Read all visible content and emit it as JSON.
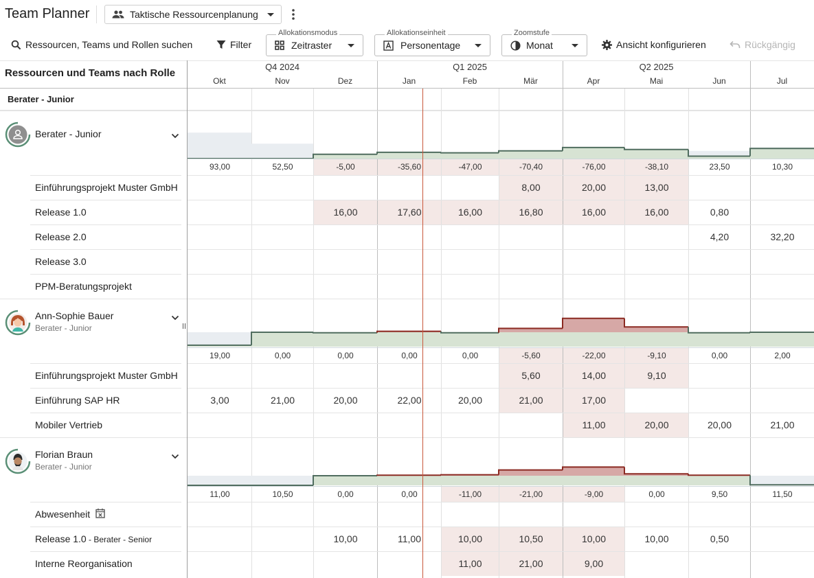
{
  "header": {
    "app_title": "Team Planner",
    "view_selector": "Taktische Ressourcenplanung"
  },
  "toolbar": {
    "search": "Ressourcen, Teams und Rollen suchen",
    "filter": "Filter",
    "alloc_mode_caption": "Allokationsmodus",
    "alloc_mode_value": "Zeitraster",
    "alloc_unit_caption": "Allokationseinheit",
    "alloc_unit_value": "Personentage",
    "zoom_caption": "Zoomstufe",
    "zoom_value": "Monat",
    "configure": "Ansicht konfigurieren",
    "undo": "Rückgängig"
  },
  "left_panel_title": "Ressourcen und Teams nach Rolle",
  "timeline": {
    "quarters": [
      "Q4 2024",
      "Q1 2025",
      "Q2 2025"
    ],
    "months": [
      "Okt",
      "Nov",
      "Dez",
      "Jan",
      "Feb",
      "Mär",
      "Apr",
      "Mai",
      "Jun",
      "Jul"
    ]
  },
  "group": {
    "label": "Berater - Junior"
  },
  "resources": [
    {
      "name": "Berater - Junior",
      "subtitle": "",
      "capacity": [
        0.54,
        0.31,
        0.09,
        0.13,
        0.12,
        0.16,
        0.23,
        0.19,
        0.16,
        0.23
      ],
      "demand": [
        0,
        0,
        0.09,
        0.13,
        0.12,
        0.16,
        0.23,
        0.19,
        0.05,
        0.21
      ],
      "sums": [
        "93,00",
        "52,50",
        "-5,00",
        "-35,60",
        "-47,00",
        "-70,40",
        "-76,00",
        "-38,10",
        "23,50",
        "10,30"
      ],
      "rows": [
        {
          "label": "Einführungsprojekt Muster GmbH",
          "cells": [
            "",
            "",
            "",
            "",
            "",
            "8,00",
            "20,00",
            "13,00",
            "",
            ""
          ]
        },
        {
          "label": "Release 1.0",
          "cells": [
            "",
            "",
            "16,00",
            "17,60",
            "16,00",
            "16,80",
            "16,00",
            "16,00",
            "0,80",
            ""
          ]
        },
        {
          "label": "Release 2.0",
          "cells": [
            "",
            "",
            "",
            "",
            "",
            "",
            "",
            "",
            "4,20",
            "32,20"
          ]
        },
        {
          "label": "Release 3.0",
          "cells": [
            "",
            "",
            "",
            "",
            "",
            "",
            "",
            "",
            "",
            ""
          ]
        },
        {
          "label": "PPM-Beratungsprojekt",
          "cells": [
            "",
            "",
            "",
            "",
            "",
            "",
            "",
            "",
            "",
            ""
          ]
        }
      ]
    },
    {
      "name": "Ann-Sophie Bauer",
      "subtitle": "Berater - Junior",
      "capacity": [
        0.3,
        0.3,
        0.3,
        0.3,
        0.3,
        0.3,
        0.3,
        0.3,
        0.3,
        0.3
      ],
      "demand": [
        0.03,
        0.3,
        0.29,
        0.32,
        0.29,
        0.38,
        0.59,
        0.41,
        0.29,
        0.3
      ],
      "sums": [
        "19,00",
        "0,00",
        "0,00",
        "0,00",
        "0,00",
        "-5,60",
        "-22,00",
        "-9,10",
        "0,00",
        "2,00"
      ],
      "rows": [
        {
          "label": "Einführungsprojekt Muster GmbH",
          "cells": [
            "",
            "",
            "",
            "",
            "",
            "5,60",
            "14,00",
            "9,10",
            "",
            ""
          ]
        },
        {
          "label": "Einführung SAP HR",
          "cells": [
            "3,00",
            "21,00",
            "20,00",
            "22,00",
            "20,00",
            "21,00",
            "17,00",
            "",
            "",
            ""
          ]
        },
        {
          "label": "Mobiler Vertrieb",
          "cells": [
            "",
            "",
            "",
            "",
            "",
            "",
            "11,00",
            "20,00",
            "20,00",
            "21,00"
          ]
        }
      ]
    },
    {
      "name": "Florian Braun",
      "subtitle": "Berater - Junior",
      "capacity": [
        0.2,
        0.2,
        0.2,
        0.2,
        0.2,
        0.2,
        0.2,
        0.2,
        0.2,
        0.2
      ],
      "demand": [
        0,
        0,
        0.2,
        0.21,
        0.22,
        0.32,
        0.38,
        0.24,
        0.21,
        0.01
      ],
      "sums": [
        "11,00",
        "10,50",
        "0,00",
        "0,00",
        "-11,00",
        "-21,00",
        "-9,00",
        "0,00",
        "9,50",
        "11,50"
      ],
      "rows": [
        {
          "label": "Abwesenheit",
          "cells": [
            "",
            "",
            "",
            "",
            "",
            "",
            "",
            "",
            "",
            ""
          ]
        },
        {
          "label": "Release 1.0",
          "label_suffix": " - Berater - Senior",
          "cells": [
            "",
            "",
            "10,00",
            "11,00",
            "10,00",
            "10,50",
            "10,00",
            "10,00",
            "0,50",
            ""
          ]
        },
        {
          "label": "Interne Reorganisation",
          "cells": [
            "",
            "",
            "",
            "",
            "11,00",
            "21,00",
            "9,00",
            "",
            "",
            ""
          ]
        }
      ]
    }
  ],
  "colors": {
    "over": "#d6a8a6",
    "over_line": "#8b2a22",
    "ok": "#d7e3d3",
    "ok_line": "#506d5f",
    "free": "#e9edf1",
    "cell_over": "#f4e8e6"
  }
}
